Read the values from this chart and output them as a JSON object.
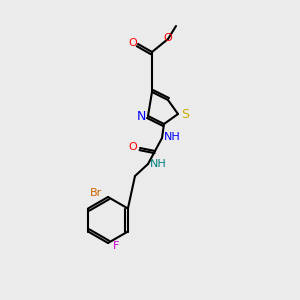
{
  "background_color": "#ebebeb",
  "bond_color": "#000000",
  "atom_colors": {
    "O": "#ff0000",
    "N": "#0000ff",
    "S": "#ccaa00",
    "Br": "#cc6600",
    "F": "#cc00cc",
    "C": "#000000",
    "H_thiazole": "#0000ff",
    "H_urea": "#008080"
  },
  "figsize": [
    3.0,
    3.0
  ],
  "dpi": 100
}
